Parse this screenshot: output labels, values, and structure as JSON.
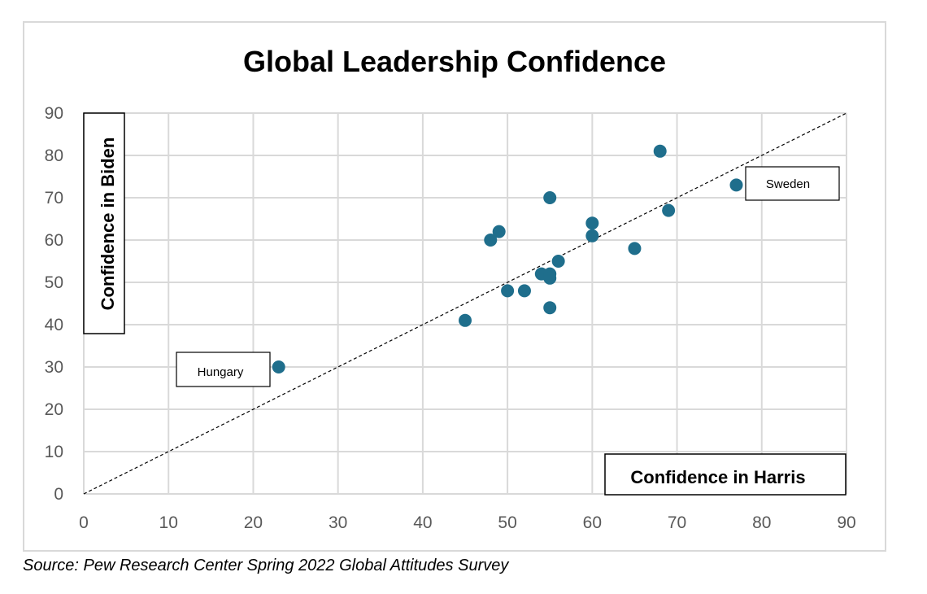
{
  "chart_data": {
    "type": "scatter",
    "title": "Global Leadership Confidence",
    "xlabel": "Confidence in Harris",
    "ylabel": "Confidence in Biden",
    "xlim": [
      0,
      90
    ],
    "ylim": [
      0,
      90
    ],
    "x_ticks": [
      0,
      10,
      20,
      30,
      40,
      50,
      60,
      70,
      80,
      90
    ],
    "y_ticks": [
      0,
      10,
      20,
      30,
      40,
      50,
      60,
      70,
      80,
      90
    ],
    "grid": true,
    "marker_color": "#1f6e8c",
    "reference_line": {
      "style": "dashed",
      "from": [
        0,
        0
      ],
      "to": [
        90,
        90
      ]
    },
    "points": [
      {
        "x": 23,
        "y": 30
      },
      {
        "x": 45,
        "y": 41
      },
      {
        "x": 48,
        "y": 60
      },
      {
        "x": 49,
        "y": 62
      },
      {
        "x": 50,
        "y": 48
      },
      {
        "x": 52,
        "y": 48
      },
      {
        "x": 54,
        "y": 52
      },
      {
        "x": 55,
        "y": 52
      },
      {
        "x": 55,
        "y": 51
      },
      {
        "x": 55,
        "y": 44
      },
      {
        "x": 55,
        "y": 70
      },
      {
        "x": 56,
        "y": 55
      },
      {
        "x": 60,
        "y": 64
      },
      {
        "x": 60,
        "y": 61
      },
      {
        "x": 65,
        "y": 58
      },
      {
        "x": 68,
        "y": 81
      },
      {
        "x": 69,
        "y": 67
      },
      {
        "x": 77,
        "y": 73
      }
    ],
    "annotations": [
      {
        "text": "Hungary",
        "x": 23,
        "y": 30
      },
      {
        "text": "Sweden",
        "x": 77,
        "y": 73
      }
    ]
  },
  "source": "Source: Pew Research Center Spring 2022 Global Attitudes Survey"
}
